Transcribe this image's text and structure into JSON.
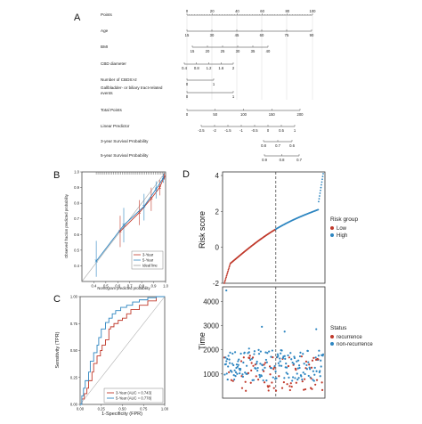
{
  "panels": {
    "a": "A",
    "b": "B",
    "c": "C",
    "d": "D"
  },
  "colors": {
    "red": "#c0392b",
    "blue": "#2e86c1",
    "grey": "#9e9e9e",
    "dark": "#333333"
  },
  "chart_data": [
    {
      "type": "nomogram",
      "panel": "A",
      "rows": [
        {
          "label": "Points",
          "ticks": [
            "0",
            "20",
            "40",
            "60",
            "80",
            "100"
          ]
        },
        {
          "label": "Age",
          "ticks": [
            "15",
            "30",
            "45",
            "60",
            "75",
            "90"
          ]
        },
        {
          "label": "BMI",
          "ticks": [
            "15",
            "20",
            "25",
            "30",
            "35",
            "40"
          ]
        },
        {
          "label": "CBD diameter",
          "ticks": [
            "0.4",
            "0.8",
            "1.2",
            "1.6",
            "2"
          ]
        },
        {
          "label": "Number of CBDS>2",
          "ticks": [
            "0",
            "1"
          ]
        },
        {
          "label": "Gallbladder- or biliary tract-related events",
          "ticks": [
            "0",
            "1"
          ]
        },
        {
          "label": "Total Points",
          "ticks": [
            "0",
            "50",
            "100",
            "150",
            "200"
          ]
        },
        {
          "label": "Linear Predictor",
          "ticks": [
            "-2.5",
            "-2",
            "-1.5",
            "-1",
            "-0.5",
            "0",
            "0.5",
            "1"
          ]
        },
        {
          "label": "3-year Survival Probability",
          "ticks": [
            "0.8",
            "0.7",
            "0.6"
          ]
        },
        {
          "label": "5-year Survival Probability",
          "ticks": [
            "0.9",
            "0.8",
            "0.7"
          ]
        }
      ]
    },
    {
      "type": "line",
      "panel": "B",
      "xlabel": "Nomogram predicted probability",
      "ylabel": "Observed fraction predicted probability",
      "xticks": [
        "0.4",
        "0.5",
        "0.6",
        "0.7",
        "0.8",
        "0.9",
        "1.0"
      ],
      "yticks": [
        "0.4",
        "0.5",
        "0.6",
        "0.7",
        "0.8",
        "0.9",
        "1.0"
      ],
      "xlim": [
        0.3,
        1.0
      ],
      "ylim": [
        0.3,
        1.0
      ],
      "series": [
        {
          "name": "3-Year",
          "color": "#c0392b",
          "x": [
            0.62,
            0.78,
            0.88,
            0.95,
            0.99
          ],
          "y": [
            0.62,
            0.74,
            0.83,
            0.9,
            0.97
          ],
          "lo": [
            0.52,
            0.66,
            0.75,
            0.85,
            0.95
          ],
          "hi": [
            0.72,
            0.82,
            0.9,
            0.95,
            0.99
          ]
        },
        {
          "name": "5-Year",
          "color": "#2e86c1",
          "x": [
            0.42,
            0.65,
            0.82,
            0.92,
            0.98
          ],
          "y": [
            0.43,
            0.66,
            0.78,
            0.89,
            0.96
          ],
          "lo": [
            0.33,
            0.55,
            0.69,
            0.83,
            0.93
          ],
          "hi": [
            0.56,
            0.77,
            0.86,
            0.94,
            0.99
          ]
        },
        {
          "name": "Ideal line",
          "color": "#9e9e9e"
        }
      ]
    },
    {
      "type": "line",
      "panel": "C",
      "xlabel": "1-Specificity (FPR)",
      "ylabel": "Sensitivity (TPR)",
      "xticks": [
        "0.00",
        "0.25",
        "0.50",
        "0.75",
        "1.00"
      ],
      "yticks": [
        "0.00",
        "0.25",
        "0.50",
        "0.75",
        "1.00"
      ],
      "series": [
        {
          "name": "3-Year (AUC = 0.743)",
          "color": "#c0392b",
          "x": [
            0,
            0.02,
            0.05,
            0.08,
            0.1,
            0.14,
            0.16,
            0.2,
            0.24,
            0.26,
            0.3,
            0.34,
            0.36,
            0.4,
            0.45,
            0.5,
            0.55,
            0.6,
            0.7,
            0.8,
            0.9,
            1
          ],
          "y": [
            0,
            0.05,
            0.1,
            0.15,
            0.22,
            0.3,
            0.38,
            0.45,
            0.5,
            0.55,
            0.6,
            0.7,
            0.72,
            0.75,
            0.78,
            0.8,
            0.84,
            0.88,
            0.92,
            0.96,
            1,
            1
          ]
        },
        {
          "name": "5-Year (AUC = 0.778)",
          "color": "#2e86c1",
          "x": [
            0,
            0.02,
            0.04,
            0.06,
            0.1,
            0.12,
            0.16,
            0.2,
            0.22,
            0.25,
            0.3,
            0.34,
            0.38,
            0.42,
            0.48,
            0.55,
            0.62,
            0.7,
            0.8,
            0.9,
            1
          ],
          "y": [
            0,
            0.08,
            0.15,
            0.22,
            0.3,
            0.4,
            0.48,
            0.55,
            0.62,
            0.7,
            0.76,
            0.8,
            0.84,
            0.87,
            0.9,
            0.92,
            0.95,
            0.97,
            0.99,
            1,
            1
          ]
        },
        {
          "name": "diagonal",
          "color": "#b0b0b0",
          "x": [
            0,
            1
          ],
          "y": [
            0,
            1
          ]
        }
      ]
    },
    {
      "type": "scatter",
      "panel": "D-top",
      "ylabel": "Risk score",
      "yticks": [
        "-2",
        "0",
        "2",
        "4"
      ],
      "ylim": [
        -2,
        4.2
      ],
      "cutoff_fraction": 0.52,
      "legend_title": "Risk group",
      "legend": [
        {
          "name": "Low",
          "color": "#c0392b"
        },
        {
          "name": "High",
          "color": "#2e86c1"
        }
      ]
    },
    {
      "type": "scatter",
      "panel": "D-bottom",
      "ylabel": "Time",
      "yticks": [
        "1000",
        "2000",
        "3000",
        "4000"
      ],
      "ylim": [
        0,
        4600
      ],
      "legend_title": "Status",
      "legend": [
        {
          "name": "recurrence",
          "color": "#c0392b"
        },
        {
          "name": "non-recurrence",
          "color": "#2e86c1"
        }
      ]
    }
  ]
}
